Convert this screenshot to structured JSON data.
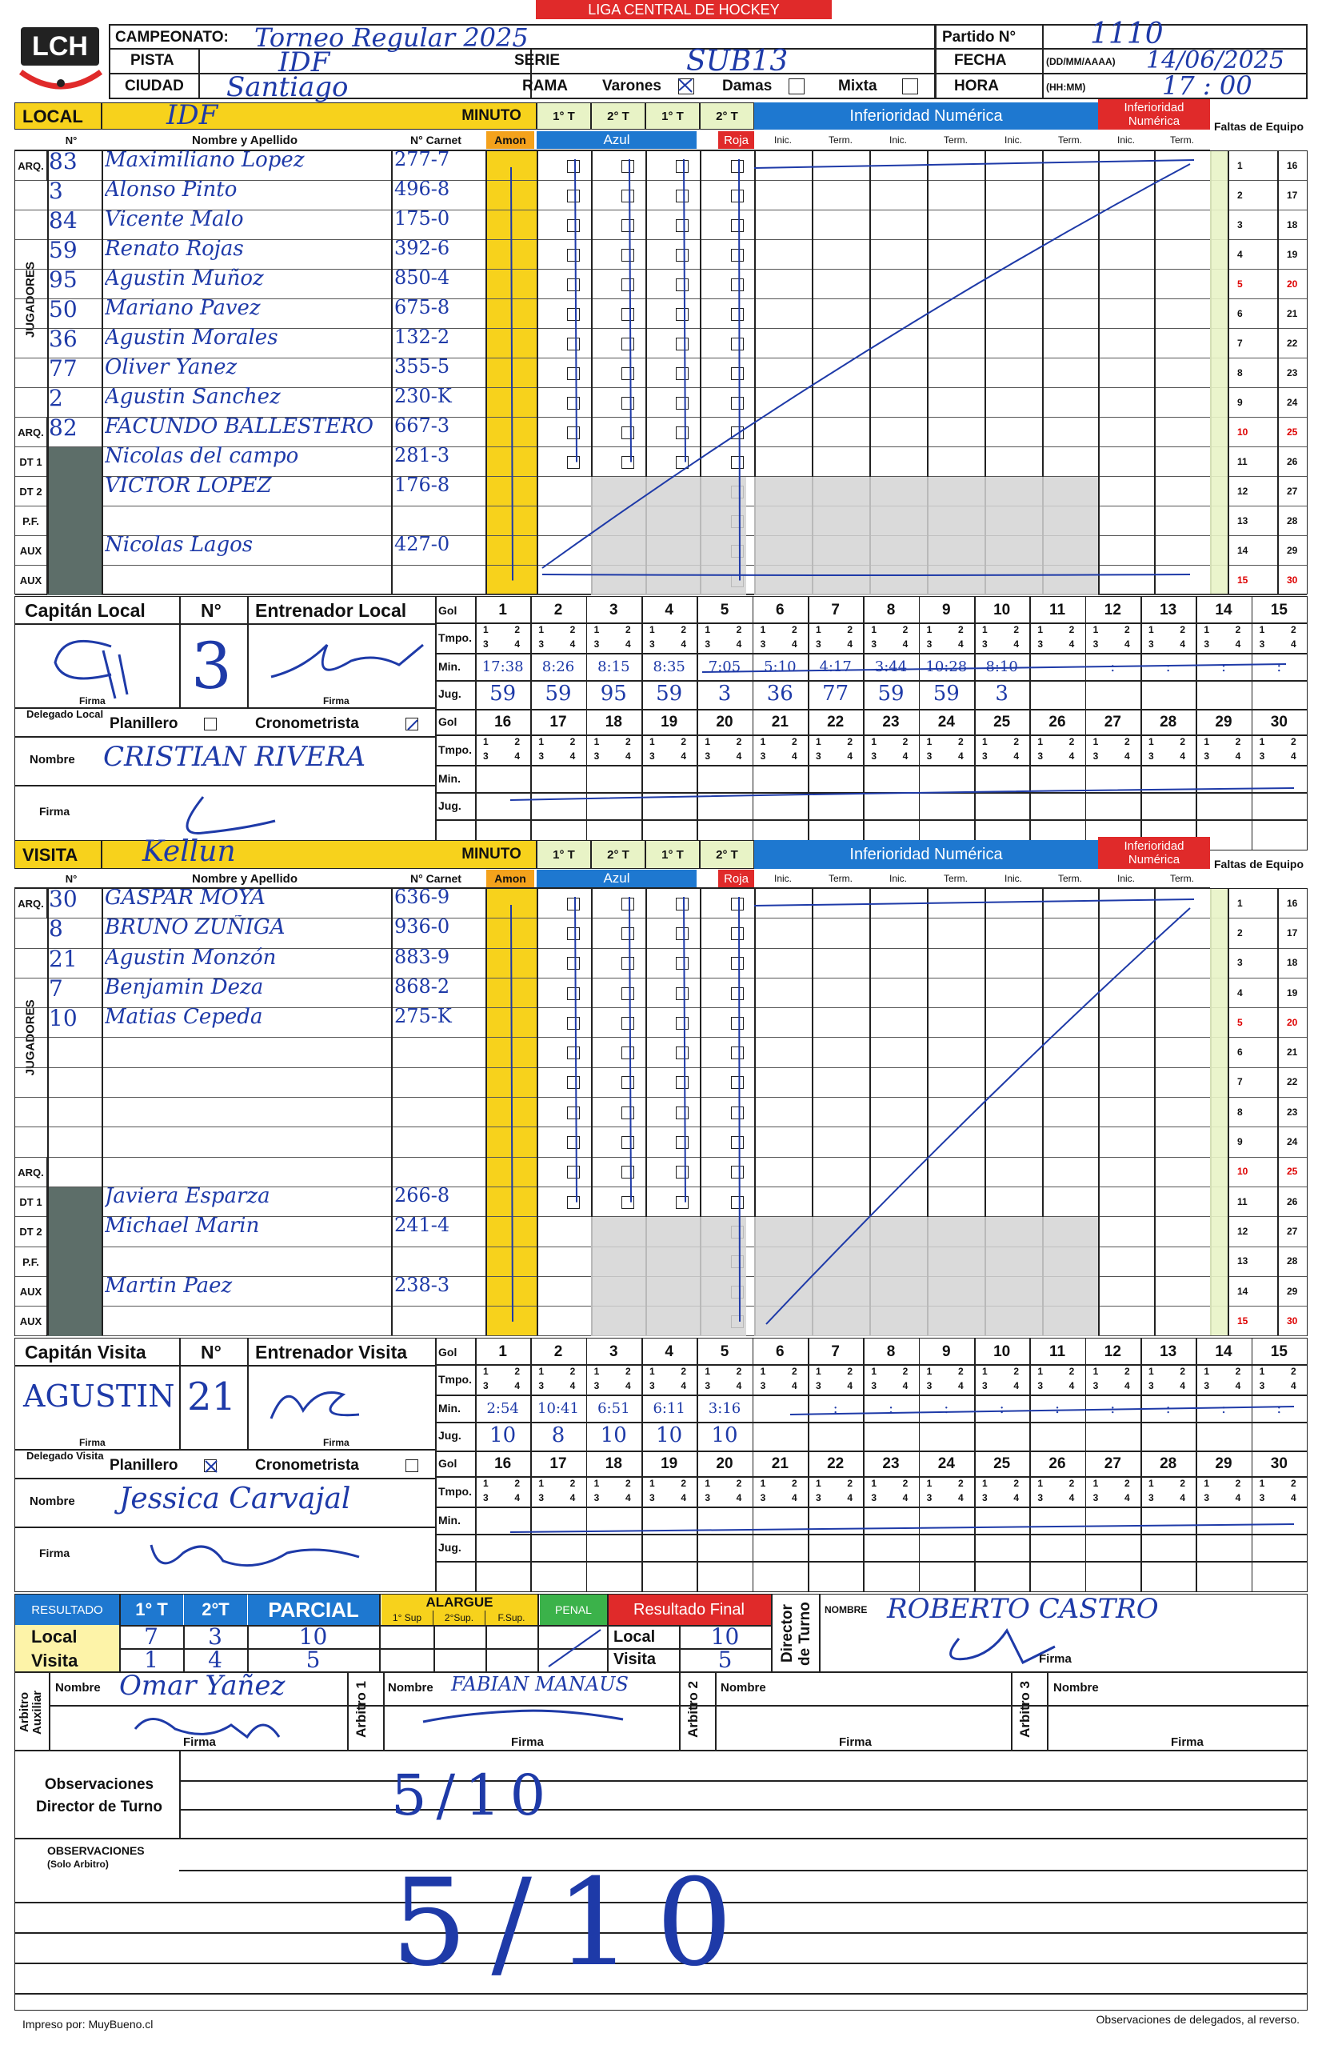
{
  "header": {
    "league": "LIGA CENTRAL DE HOCKEY",
    "logo_text": "LCH",
    "campeonato_label": "CAMPEONATO:",
    "campeonato_value": "Torneo Regular 2025",
    "partido_label": "Partido N°",
    "partido_value": "1110",
    "pista_label": "PISTA",
    "pista_value": "IDF",
    "serie_label": "SERIE",
    "serie_value": "SUB13",
    "fecha_label": "FECHA",
    "fecha_format": "(DD/MM/AAAA)",
    "fecha_value": "14/06/2025",
    "ciudad_label": "CIUDAD",
    "ciudad_value": "Santiago",
    "rama_label": "RAMA",
    "varones_label": "Varones",
    "damas_label": "Damas",
    "mixta_label": "Mixta",
    "hora_label": "HORA",
    "hora_format": "(HH:MM)",
    "hora_value": "17 : 00"
  },
  "cols": {
    "minuto": "MINUTO",
    "t1": "1° T",
    "t2": "2° T",
    "t1b": "1° T",
    "t2b": "2° T",
    "inferioridad": "Inferioridad Numérica",
    "num": "N°",
    "nombre": "Nombre y Apellido",
    "carnet": "N° Carnet",
    "amon": "Amon",
    "azul": "Azul",
    "roja": "Roja",
    "inic": "Inic.",
    "term": "Term.",
    "faltas": "Faltas de Equipo",
    "jugadores": "JUGADORES"
  },
  "local": {
    "label": "LOCAL",
    "team": "IDF",
    "rows": [
      {
        "role": "ARQ.",
        "num": "83",
        "name": "Maximiliano Lopez",
        "carnet": "277-7"
      },
      {
        "role": "",
        "num": "3",
        "name": "Alonso Pinto",
        "carnet": "496-8"
      },
      {
        "role": "",
        "num": "84",
        "name": "Vicente Malo",
        "carnet": "175-0"
      },
      {
        "role": "",
        "num": "59",
        "name": "Renato Rojas",
        "carnet": "392-6"
      },
      {
        "role": "",
        "num": "95",
        "name": "Agustin Muñoz",
        "carnet": "850-4"
      },
      {
        "role": "",
        "num": "50",
        "name": "Mariano Pavez",
        "carnet": "675-8"
      },
      {
        "role": "",
        "num": "36",
        "name": "Agustin Morales",
        "carnet": "132-2"
      },
      {
        "role": "",
        "num": "77",
        "name": "Oliver Yanez",
        "carnet": "355-5"
      },
      {
        "role": "",
        "num": "2",
        "name": "Agustin Sanchez",
        "carnet": "230-K"
      },
      {
        "role": "ARQ.",
        "num": "82",
        "name": "FACUNDO BALLESTERO",
        "carnet": "667-3"
      },
      {
        "role": "DT 1",
        "num": "",
        "name": "Nicolas del campo",
        "carnet": "281-3"
      },
      {
        "role": "DT 2",
        "num": "",
        "name": "VICTOR LOPEZ",
        "carnet": "176-8"
      },
      {
        "role": "P.F.",
        "num": "",
        "name": "",
        "carnet": ""
      },
      {
        "role": "AUX",
        "num": "",
        "name": "Nicolas Lagos",
        "carnet": "427-0"
      },
      {
        "role": "AUX",
        "num": "",
        "name": "",
        "carnet": ""
      }
    ],
    "faltas_left": [
      "1",
      "2",
      "3",
      "4",
      "5",
      "6",
      "7",
      "8",
      "9",
      "10",
      "11",
      "12",
      "13",
      "14",
      "15"
    ],
    "faltas_right": [
      "16",
      "17",
      "18",
      "19",
      "20",
      "21",
      "22",
      "23",
      "24",
      "25",
      "26",
      "27",
      "28",
      "29",
      "30"
    ],
    "capitan_label": "Capitán Local",
    "num_label": "N°",
    "entrenador_label": "Entrenador Local",
    "capitan_num": "3",
    "firma_label": "Firma",
    "delegado_label": "Delegado Local",
    "planillero_label": "Planillero",
    "cronometrista_label": "Cronometrista",
    "nombre_label": "Nombre",
    "delegado_nombre": "CRISTIAN RIVERA",
    "goals_1": {
      "numbers": [
        "1",
        "2",
        "3",
        "4",
        "5",
        "6",
        "7",
        "8",
        "9",
        "10",
        "11",
        "12",
        "13",
        "14",
        "15"
      ],
      "min": [
        "17:38",
        "8:26",
        "8:15",
        "8:35",
        "7:05",
        "5:10",
        "4:17",
        "3:44",
        "10:28",
        "8:10",
        "",
        ":",
        ":",
        ":",
        ":"
      ],
      "jug": [
        "59",
        "59",
        "95",
        "59",
        "3",
        "36",
        "77",
        "59",
        "59",
        "3",
        "",
        "",
        "",
        "",
        ""
      ]
    },
    "goals_2": {
      "numbers": [
        "16",
        "17",
        "18",
        "19",
        "20",
        "21",
        "22",
        "23",
        "24",
        "25",
        "26",
        "27",
        "28",
        "29",
        "30"
      ]
    }
  },
  "visita": {
    "label": "VISITA",
    "team": "Kellun",
    "rows": [
      {
        "role": "ARQ.",
        "num": "30",
        "name": "GASPAR MOYA",
        "carnet": "636-9"
      },
      {
        "role": "",
        "num": "8",
        "name": "BRUNO ZUÑIGA",
        "carnet": "936-0"
      },
      {
        "role": "",
        "num": "21",
        "name": "Agustin Monzón",
        "carnet": "883-9"
      },
      {
        "role": "",
        "num": "7",
        "name": "Benjamin Deza",
        "carnet": "868-2"
      },
      {
        "role": "",
        "num": "10",
        "name": "Matias Cepeda",
        "carnet": "275-K"
      },
      {
        "role": "",
        "num": "",
        "name": "",
        "carnet": ""
      },
      {
        "role": "",
        "num": "",
        "name": "",
        "carnet": ""
      },
      {
        "role": "",
        "num": "",
        "name": "",
        "carnet": ""
      },
      {
        "role": "",
        "num": "",
        "name": "",
        "carnet": ""
      },
      {
        "role": "ARQ.",
        "num": "",
        "name": "",
        "carnet": ""
      },
      {
        "role": "DT 1",
        "num": "",
        "name": "Javiera Esparza",
        "carnet": "266-8"
      },
      {
        "role": "DT 2",
        "num": "",
        "name": "Michael Marin",
        "carnet": "241-4"
      },
      {
        "role": "P.F.",
        "num": "",
        "name": "",
        "carnet": ""
      },
      {
        "role": "AUX",
        "num": "",
        "name": "Martin Paez",
        "carnet": "238-3"
      },
      {
        "role": "AUX",
        "num": "",
        "name": "",
        "carnet": ""
      }
    ],
    "capitan_label": "Capitán Visita",
    "num_label": "N°",
    "entrenador_label": "Entrenador Visita",
    "capitan_name": "AGUSTIN",
    "capitan_num": "21",
    "firma_label": "Firma",
    "delegado_label": "Delegado Visita",
    "planillero_label": "Planillero",
    "cronometrista_label": "Cronometrista",
    "nombre_label": "Nombre",
    "delegado_nombre": "Jessica Carvajal",
    "goals_1": {
      "numbers": [
        "1",
        "2",
        "3",
        "4",
        "5",
        "6",
        "7",
        "8",
        "9",
        "10",
        "11",
        "12",
        "13",
        "14",
        "15"
      ],
      "min": [
        "2:54",
        "10:41",
        "6:51",
        "6:11",
        "3:16",
        "",
        ":",
        ":",
        ":",
        ":",
        ":",
        ":",
        ":",
        ":",
        ":"
      ],
      "jug": [
        "10",
        "8",
        "10",
        "10",
        "10",
        "",
        "",
        "",
        "",
        "",
        "",
        "",
        "",
        "",
        ""
      ]
    },
    "goals_2": {
      "numbers": [
        "16",
        "17",
        "18",
        "19",
        "20",
        "21",
        "22",
        "23",
        "24",
        "25",
        "26",
        "27",
        "28",
        "29",
        "30"
      ]
    }
  },
  "goal_labels": {
    "gol": "Gol",
    "tmpo": "Tmpo.",
    "min": "Min.",
    "jug": "Jug.",
    "q1": "1",
    "q2": "2",
    "q3": "3",
    "q4": "4"
  },
  "result": {
    "label": "RESULTADO",
    "t1": "1° T",
    "t2": "2°T",
    "parcial": "PARCIAL",
    "alargue": "ALARGUE",
    "sup1": "1° Sup",
    "sup2": "2°Sup.",
    "fsup": "F.Sup.",
    "penal": "PENAL",
    "final_label": "Resultado Final",
    "local_label": "Local",
    "visita_label": "Visita",
    "local_t1": "7",
    "local_t2": "3",
    "local_parcial": "10",
    "visita_t1": "1",
    "visita_t2": "4",
    "visita_parcial": "5",
    "final_local": "10",
    "final_visita": "5",
    "director_label": "Director de Turno",
    "nombre_label": "NOMBRE",
    "director_nombre": "ROBERTO CASTRO",
    "firma_label": "Firma"
  },
  "referees": {
    "aux_label": "Arbitro Auxiliar",
    "nombre_label": "Nombre",
    "aux_nombre": "Omar Yañez",
    "a1_label": "Arbitro 1",
    "a1_nombre": "FABIAN MANAUS",
    "a2_label": "Arbitro 2",
    "a3_label": "Arbitro 3",
    "firma_label": "Firma"
  },
  "observaciones": {
    "director_label": "Observaciones Director de Turno",
    "director_value": "5/10",
    "arbitro_label": "OBSERVACIONES",
    "arbitro_sub": "(Solo Arbitro)",
    "arbitro_value": "5/10"
  },
  "footer": {
    "left": "Impreso por: MuyBueno.cl",
    "right": "Observaciones de delegados, al reverso."
  }
}
